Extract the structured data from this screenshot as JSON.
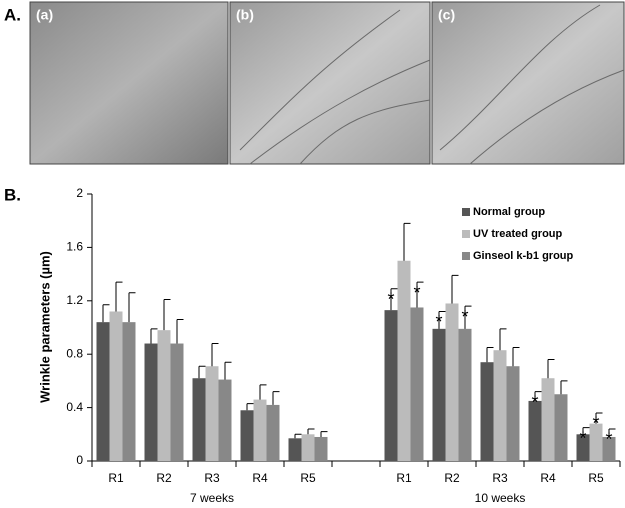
{
  "panel_labels": {
    "a": "A.",
    "b": "B."
  },
  "photos": [
    "(a)",
    "(b)",
    "(c)"
  ],
  "chart_data": {
    "type": "bar",
    "ylabel": "Wrinkle parameters (µm)",
    "categories": [
      "R1",
      "R2",
      "R3",
      "R4",
      "R5",
      null,
      "R1",
      "R2",
      "R3",
      "R4",
      "R5"
    ],
    "groups": [
      "7 weeks",
      "10 weeks"
    ],
    "ylim": [
      0,
      2
    ],
    "yticks": [
      0,
      0.4,
      0.8,
      1.2,
      1.6,
      2
    ],
    "legend": "top-right",
    "series": [
      {
        "name": "Normal group",
        "color": "#555555",
        "values": [
          1.04,
          0.88,
          0.62,
          0.38,
          0.17,
          null,
          1.13,
          0.99,
          0.74,
          0.45,
          0.2
        ],
        "errors": [
          0.13,
          0.11,
          0.09,
          0.05,
          0.03,
          null,
          0.16,
          0.13,
          0.11,
          0.07,
          0.05
        ],
        "annotations": [
          null,
          null,
          null,
          null,
          null,
          null,
          "*",
          "*",
          null,
          "*",
          "*"
        ]
      },
      {
        "name": "UV treated group",
        "color": "#bbbbbb",
        "values": [
          1.12,
          0.98,
          0.71,
          0.46,
          0.2,
          null,
          1.5,
          1.18,
          0.83,
          0.62,
          0.28
        ],
        "errors": [
          0.22,
          0.23,
          0.17,
          0.11,
          0.04,
          null,
          0.28,
          0.21,
          0.16,
          0.14,
          0.08
        ],
        "annotations": [
          null,
          null,
          null,
          null,
          null,
          null,
          null,
          null,
          null,
          null,
          "*"
        ]
      },
      {
        "name": "Ginseol k-b1 group",
        "color": "#888888",
        "values": [
          1.04,
          0.88,
          0.61,
          0.42,
          0.18,
          null,
          1.15,
          0.99,
          0.71,
          0.5,
          0.18
        ],
        "errors": [
          0.22,
          0.18,
          0.13,
          0.1,
          0.04,
          null,
          0.19,
          0.17,
          0.14,
          0.1,
          0.06
        ],
        "annotations": [
          null,
          null,
          null,
          null,
          null,
          null,
          "*",
          "*",
          null,
          null,
          "*"
        ]
      }
    ]
  }
}
